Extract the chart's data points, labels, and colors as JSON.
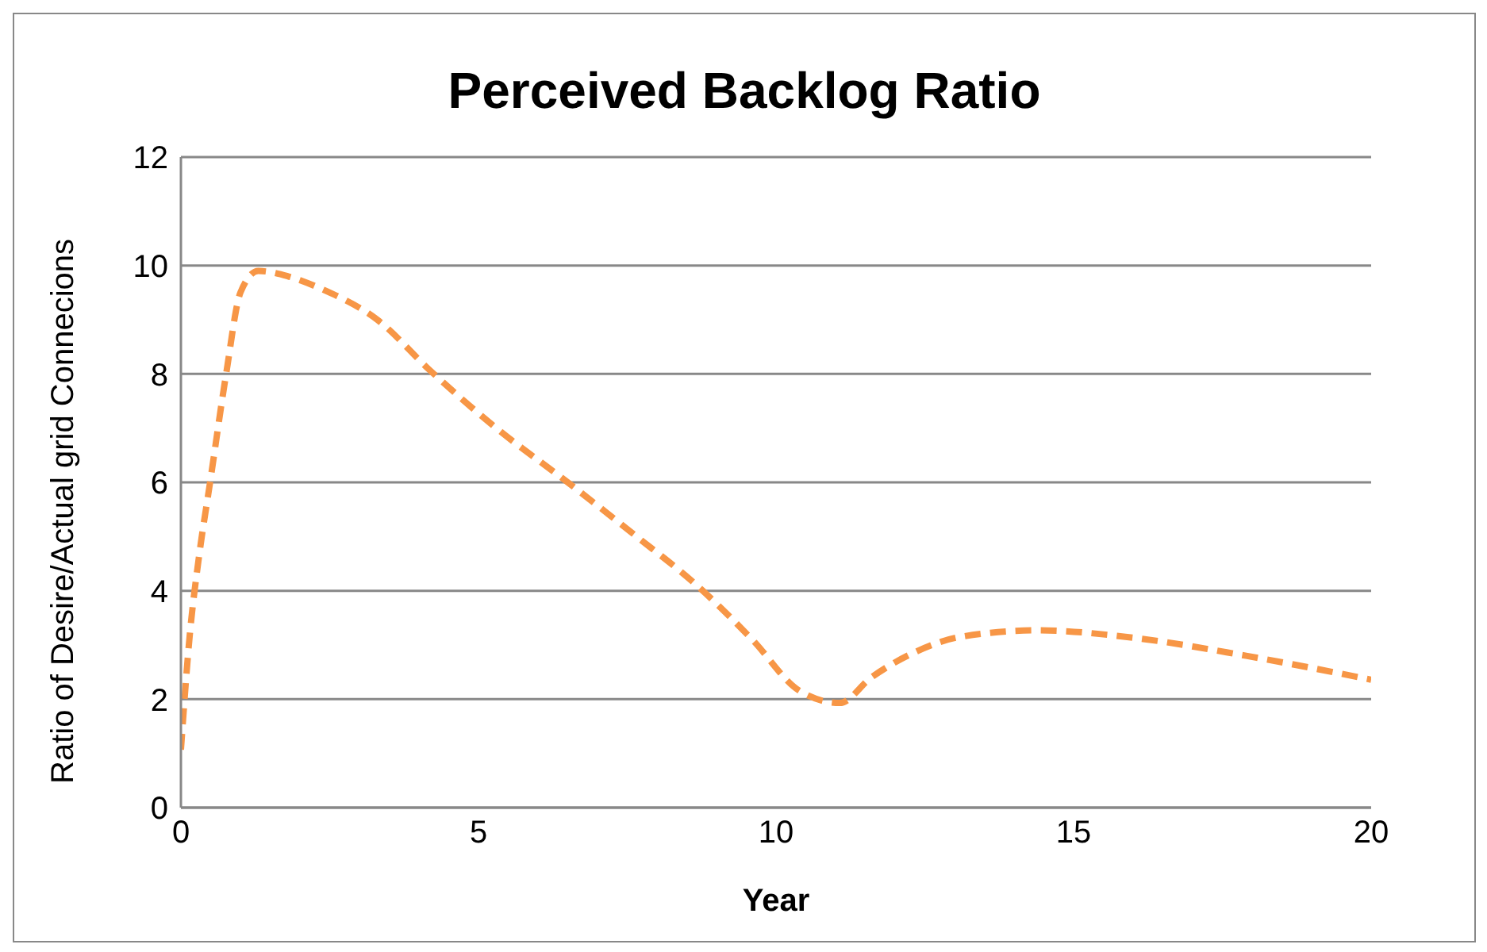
{
  "chart_data": {
    "type": "line",
    "title": "Perceived Backlog Ratio",
    "xlabel": "Year",
    "ylabel": "Ratio of Desire/Actual grid Connecions",
    "x": [
      0,
      0.15,
      0.3,
      0.49,
      0.76,
      1.0,
      1.3,
      1.8,
      2.4,
      3.3,
      4.2,
      5.3,
      6.5,
      7.6,
      8.7,
      9.6,
      10.4,
      11.07,
      11.6,
      12.3,
      13.1,
      14.4,
      16.1,
      17.9,
      20
    ],
    "series": [
      {
        "color": "#f79646",
        "values": [
          1.07,
          3.2,
          4.6,
          6.0,
          8.0,
          9.5,
          9.9,
          9.8,
          9.55,
          9.0,
          8.05,
          7.0,
          6.0,
          5.05,
          4.07,
          3.1,
          2.15,
          1.93,
          2.4,
          2.85,
          3.15,
          3.27,
          3.12,
          2.8,
          2.36
        ]
      }
    ],
    "xlim": [
      0,
      20
    ],
    "xticks": [
      0,
      5,
      10,
      15,
      20
    ],
    "ylim": [
      0,
      12
    ],
    "yticks": [
      0,
      2,
      4,
      6,
      8,
      10,
      12
    ],
    "grid": "y",
    "line_style": "dashed",
    "marker": "none",
    "legend": false
  }
}
